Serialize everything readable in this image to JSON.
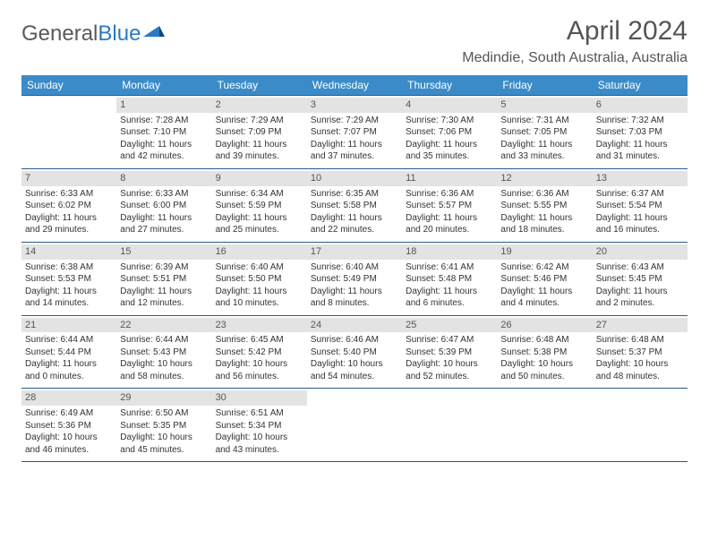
{
  "brand": {
    "part1": "General",
    "part2": "Blue"
  },
  "title": "April 2024",
  "location": "Medindie, South Australia, Australia",
  "colors": {
    "header_bg": "#3b8bc9",
    "rule": "#2a5a8a",
    "daynum_bg": "#e3e3e3",
    "text": "#333333",
    "muted": "#555555",
    "brand_blue": "#2a7ac0"
  },
  "day_headers": [
    "Sunday",
    "Monday",
    "Tuesday",
    "Wednesday",
    "Thursday",
    "Friday",
    "Saturday"
  ],
  "first_weekday_index": 1,
  "days": [
    {
      "n": 1,
      "sunrise": "7:28 AM",
      "sunset": "7:10 PM",
      "daylight": "11 hours and 42 minutes."
    },
    {
      "n": 2,
      "sunrise": "7:29 AM",
      "sunset": "7:09 PM",
      "daylight": "11 hours and 39 minutes."
    },
    {
      "n": 3,
      "sunrise": "7:29 AM",
      "sunset": "7:07 PM",
      "daylight": "11 hours and 37 minutes."
    },
    {
      "n": 4,
      "sunrise": "7:30 AM",
      "sunset": "7:06 PM",
      "daylight": "11 hours and 35 minutes."
    },
    {
      "n": 5,
      "sunrise": "7:31 AM",
      "sunset": "7:05 PM",
      "daylight": "11 hours and 33 minutes."
    },
    {
      "n": 6,
      "sunrise": "7:32 AM",
      "sunset": "7:03 PM",
      "daylight": "11 hours and 31 minutes."
    },
    {
      "n": 7,
      "sunrise": "6:33 AM",
      "sunset": "6:02 PM",
      "daylight": "11 hours and 29 minutes."
    },
    {
      "n": 8,
      "sunrise": "6:33 AM",
      "sunset": "6:00 PM",
      "daylight": "11 hours and 27 minutes."
    },
    {
      "n": 9,
      "sunrise": "6:34 AM",
      "sunset": "5:59 PM",
      "daylight": "11 hours and 25 minutes."
    },
    {
      "n": 10,
      "sunrise": "6:35 AM",
      "sunset": "5:58 PM",
      "daylight": "11 hours and 22 minutes."
    },
    {
      "n": 11,
      "sunrise": "6:36 AM",
      "sunset": "5:57 PM",
      "daylight": "11 hours and 20 minutes."
    },
    {
      "n": 12,
      "sunrise": "6:36 AM",
      "sunset": "5:55 PM",
      "daylight": "11 hours and 18 minutes."
    },
    {
      "n": 13,
      "sunrise": "6:37 AM",
      "sunset": "5:54 PM",
      "daylight": "11 hours and 16 minutes."
    },
    {
      "n": 14,
      "sunrise": "6:38 AM",
      "sunset": "5:53 PM",
      "daylight": "11 hours and 14 minutes."
    },
    {
      "n": 15,
      "sunrise": "6:39 AM",
      "sunset": "5:51 PM",
      "daylight": "11 hours and 12 minutes."
    },
    {
      "n": 16,
      "sunrise": "6:40 AM",
      "sunset": "5:50 PM",
      "daylight": "11 hours and 10 minutes."
    },
    {
      "n": 17,
      "sunrise": "6:40 AM",
      "sunset": "5:49 PM",
      "daylight": "11 hours and 8 minutes."
    },
    {
      "n": 18,
      "sunrise": "6:41 AM",
      "sunset": "5:48 PM",
      "daylight": "11 hours and 6 minutes."
    },
    {
      "n": 19,
      "sunrise": "6:42 AM",
      "sunset": "5:46 PM",
      "daylight": "11 hours and 4 minutes."
    },
    {
      "n": 20,
      "sunrise": "6:43 AM",
      "sunset": "5:45 PM",
      "daylight": "11 hours and 2 minutes."
    },
    {
      "n": 21,
      "sunrise": "6:44 AM",
      "sunset": "5:44 PM",
      "daylight": "11 hours and 0 minutes."
    },
    {
      "n": 22,
      "sunrise": "6:44 AM",
      "sunset": "5:43 PM",
      "daylight": "10 hours and 58 minutes."
    },
    {
      "n": 23,
      "sunrise": "6:45 AM",
      "sunset": "5:42 PM",
      "daylight": "10 hours and 56 minutes."
    },
    {
      "n": 24,
      "sunrise": "6:46 AM",
      "sunset": "5:40 PM",
      "daylight": "10 hours and 54 minutes."
    },
    {
      "n": 25,
      "sunrise": "6:47 AM",
      "sunset": "5:39 PM",
      "daylight": "10 hours and 52 minutes."
    },
    {
      "n": 26,
      "sunrise": "6:48 AM",
      "sunset": "5:38 PM",
      "daylight": "10 hours and 50 minutes."
    },
    {
      "n": 27,
      "sunrise": "6:48 AM",
      "sunset": "5:37 PM",
      "daylight": "10 hours and 48 minutes."
    },
    {
      "n": 28,
      "sunrise": "6:49 AM",
      "sunset": "5:36 PM",
      "daylight": "10 hours and 46 minutes."
    },
    {
      "n": 29,
      "sunrise": "6:50 AM",
      "sunset": "5:35 PM",
      "daylight": "10 hours and 45 minutes."
    },
    {
      "n": 30,
      "sunrise": "6:51 AM",
      "sunset": "5:34 PM",
      "daylight": "10 hours and 43 minutes."
    }
  ],
  "labels": {
    "sunrise": "Sunrise:",
    "sunset": "Sunset:",
    "daylight": "Daylight:"
  }
}
